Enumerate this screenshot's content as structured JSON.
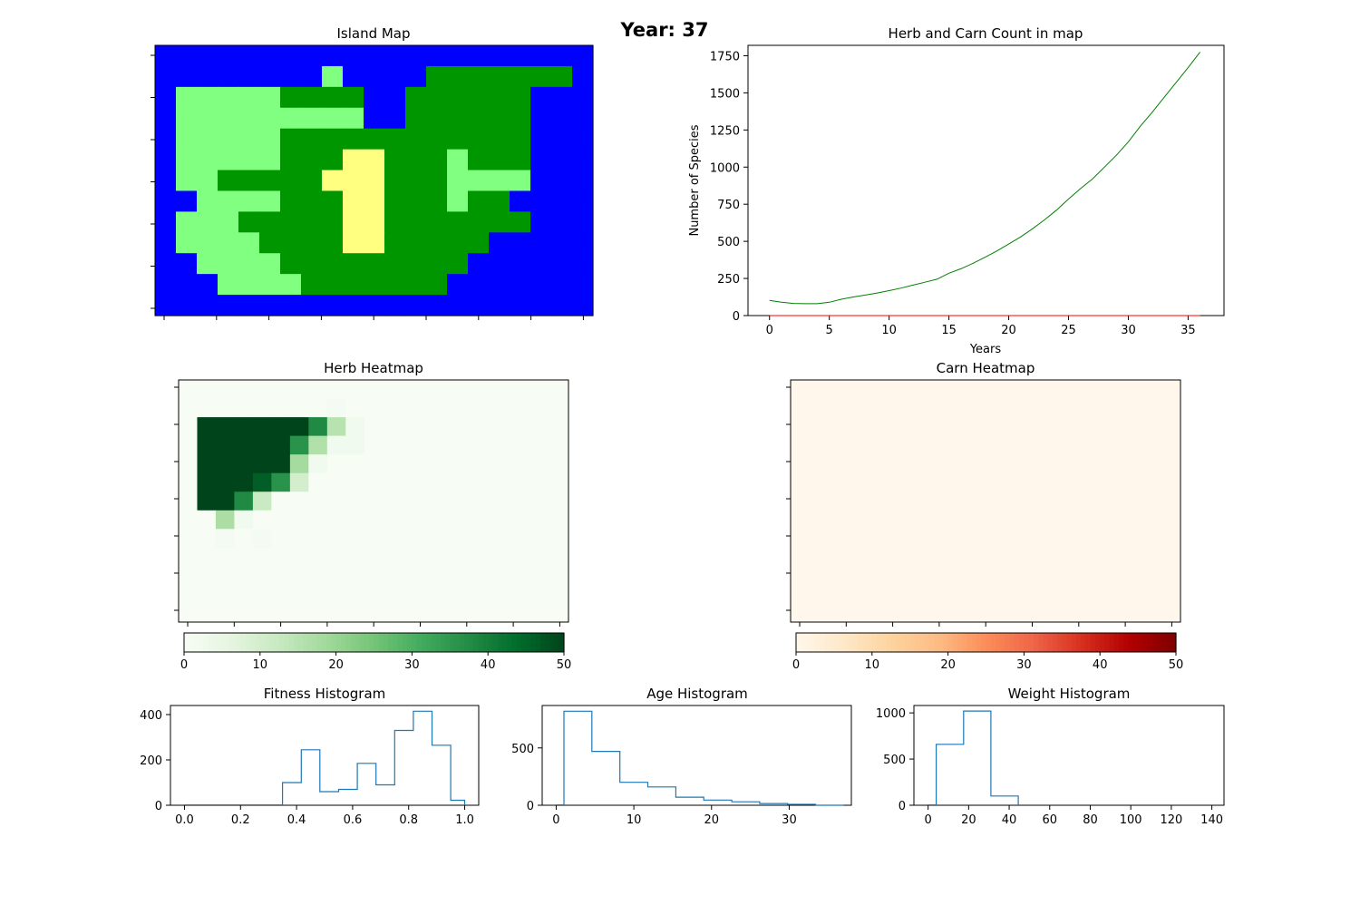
{
  "figure": {
    "title": "Year: 37"
  },
  "chart_data": [
    {
      "type": "heatmap",
      "title": "Island Map",
      "colors": {
        "W": "#0000ff",
        "L": "#009600",
        "H": "#80ff80",
        "D": "#ffff80"
      },
      "grid": [
        "WWWWWWWWWWWWWWWWWWWWW",
        "WWWWWWWWHWWWWLLLLLLLW",
        "WHHHHHLLLLWWLLLLLLWWW",
        "WHHHHHHHHHWWLLLLLLWWW",
        "WHHHHHLLLLLLLLLLLLWWW",
        "WHHHHHLLLDDLLLHLLLWWW",
        "WHHLLLLLDDDLLLHHHHWWW",
        "WWHHHHLLLDDLLLHLLWWWW",
        "WHHHLLLLLDDLLLLLLLWWW",
        "WHHHHLLLLDDLLLLLWWWWW",
        "WWHHHHLLLLLLLLLWWWWWW",
        "WWWHHHHLLLLLLLWWWWWWW",
        "WWWWWWWWWWWWWWWWWWWWW"
      ]
    },
    {
      "type": "line",
      "title": "Herb and Carn Count in map",
      "xlabel": "Years",
      "ylabel": "Number of Species",
      "xlim": [
        -1.8,
        38
      ],
      "ylim": [
        0,
        1820
      ],
      "xticks": [
        0,
        5,
        10,
        15,
        20,
        25,
        30,
        35
      ],
      "yticks": [
        0,
        250,
        500,
        750,
        1000,
        1250,
        1500,
        1750
      ],
      "series": [
        {
          "color": "#008000",
          "x": [
            0,
            1,
            2,
            3,
            4,
            5,
            6,
            7,
            8,
            9,
            10,
            11,
            12,
            13,
            14,
            15,
            16,
            17,
            18,
            19,
            20,
            21,
            22,
            23,
            24,
            25,
            26,
            27,
            28,
            29,
            30,
            31,
            32,
            33,
            34,
            35,
            36
          ],
          "y": [
            102,
            90,
            82,
            80,
            80,
            90,
            110,
            125,
            138,
            152,
            168,
            185,
            205,
            225,
            245,
            285,
            315,
            352,
            392,
            435,
            482,
            530,
            585,
            645,
            710,
            785,
            855,
            920,
            1000,
            1080,
            1170,
            1275,
            1370,
            1470,
            1570,
            1670,
            1775
          ]
        },
        {
          "color": "#ff0000",
          "x": [
            0,
            36
          ],
          "y": [
            0,
            0
          ]
        }
      ]
    },
    {
      "type": "heatmap",
      "title": "Herb Heatmap",
      "cmap": "Greens",
      "vmin": 0,
      "vmax": 50,
      "colorbar_ticks": [
        0,
        10,
        20,
        30,
        40,
        50
      ],
      "values": [
        [
          0,
          0,
          0,
          0,
          0,
          0,
          0,
          0,
          0,
          0,
          0,
          0,
          0,
          0,
          0,
          0,
          0,
          0,
          0,
          0,
          0
        ],
        [
          0,
          0,
          0,
          0,
          0,
          0,
          0,
          0,
          1,
          0,
          0,
          0,
          0,
          0,
          0,
          0,
          0,
          0,
          0,
          0,
          0
        ],
        [
          0,
          50,
          50,
          50,
          50,
          50,
          50,
          38,
          15,
          2,
          0,
          0,
          0,
          0,
          0,
          0,
          0,
          0,
          0,
          0,
          0
        ],
        [
          0,
          50,
          50,
          50,
          50,
          50,
          36,
          16,
          2,
          2,
          0,
          0,
          0,
          0,
          0,
          0,
          0,
          0,
          0,
          0,
          0
        ],
        [
          0,
          50,
          50,
          50,
          50,
          50,
          18,
          2,
          0,
          0,
          0,
          0,
          0,
          0,
          0,
          0,
          0,
          0,
          0,
          0,
          0
        ],
        [
          0,
          50,
          50,
          50,
          46,
          36,
          10,
          0,
          0,
          0,
          0,
          0,
          0,
          0,
          0,
          0,
          0,
          0,
          0,
          0,
          0
        ],
        [
          0,
          50,
          50,
          38,
          12,
          0,
          0,
          0,
          0,
          0,
          0,
          0,
          0,
          0,
          0,
          0,
          0,
          0,
          0,
          0,
          0
        ],
        [
          0,
          0,
          17,
          2,
          0,
          0,
          0,
          0,
          0,
          0,
          0,
          0,
          0,
          0,
          0,
          0,
          0,
          0,
          0,
          0,
          0
        ],
        [
          0,
          0,
          1,
          0,
          1,
          0,
          0,
          0,
          0,
          0,
          0,
          0,
          0,
          0,
          0,
          0,
          0,
          0,
          0,
          0,
          0
        ],
        [
          0,
          0,
          0,
          0,
          0,
          0,
          0,
          0,
          0,
          0,
          0,
          0,
          0,
          0,
          0,
          0,
          0,
          0,
          0,
          0,
          0
        ],
        [
          0,
          0,
          0,
          0,
          0,
          0,
          0,
          0,
          0,
          0,
          0,
          0,
          0,
          0,
          0,
          0,
          0,
          0,
          0,
          0,
          0
        ],
        [
          0,
          0,
          0,
          0,
          0,
          0,
          0,
          0,
          0,
          0,
          0,
          0,
          0,
          0,
          0,
          0,
          0,
          0,
          0,
          0,
          0
        ],
        [
          0,
          0,
          0,
          0,
          0,
          0,
          0,
          0,
          0,
          0,
          0,
          0,
          0,
          0,
          0,
          0,
          0,
          0,
          0,
          0,
          0
        ]
      ]
    },
    {
      "type": "heatmap",
      "title": "Carn Heatmap",
      "cmap": "OrRd",
      "vmin": 0,
      "vmax": 50,
      "colorbar_ticks": [
        0,
        10,
        20,
        30,
        40,
        50
      ],
      "values": "all 0"
    },
    {
      "type": "bar",
      "subtype": "step-histogram",
      "title": "Fitness Histogram",
      "xlim": [
        -0.05,
        1.05
      ],
      "ylim": [
        0,
        440
      ],
      "xticks": [
        0.0,
        0.2,
        0.4,
        0.6,
        0.8,
        1.0
      ],
      "xticklabels": [
        "0.0",
        "0.2",
        "0.4",
        "0.6",
        "0.8",
        "1.0"
      ],
      "yticks": [
        0,
        200,
        400
      ],
      "bin_edges": [
        0.35,
        0.4167,
        0.4833,
        0.55,
        0.6167,
        0.6833,
        0.75,
        0.8167,
        0.8833,
        0.95,
        1.0
      ],
      "counts": [
        100,
        245,
        60,
        70,
        185,
        90,
        330,
        415,
        265,
        22
      ]
    },
    {
      "type": "bar",
      "subtype": "step-histogram",
      "title": "Age Histogram",
      "xlim": [
        -1.8,
        38
      ],
      "ylim": [
        0,
        870
      ],
      "xticks": [
        0,
        10,
        20,
        30
      ],
      "yticks": [
        0,
        500
      ],
      "bin_edges": [
        1.0,
        4.6,
        8.2,
        11.8,
        15.4,
        19.0,
        22.6,
        26.2,
        29.8,
        33.4,
        37.0
      ],
      "counts": [
        820,
        470,
        200,
        160,
        70,
        45,
        30,
        15,
        8,
        0
      ]
    },
    {
      "type": "bar",
      "subtype": "step-histogram",
      "title": "Weight Histogram",
      "xlim": [
        -7,
        146
      ],
      "ylim": [
        0,
        1080
      ],
      "xticks": [
        0,
        20,
        40,
        60,
        80,
        100,
        120,
        140
      ],
      "yticks": [
        0,
        500,
        1000
      ],
      "bin_edges": [
        4,
        17.5,
        31,
        44.5
      ],
      "counts": [
        660,
        1020,
        100
      ]
    }
  ]
}
